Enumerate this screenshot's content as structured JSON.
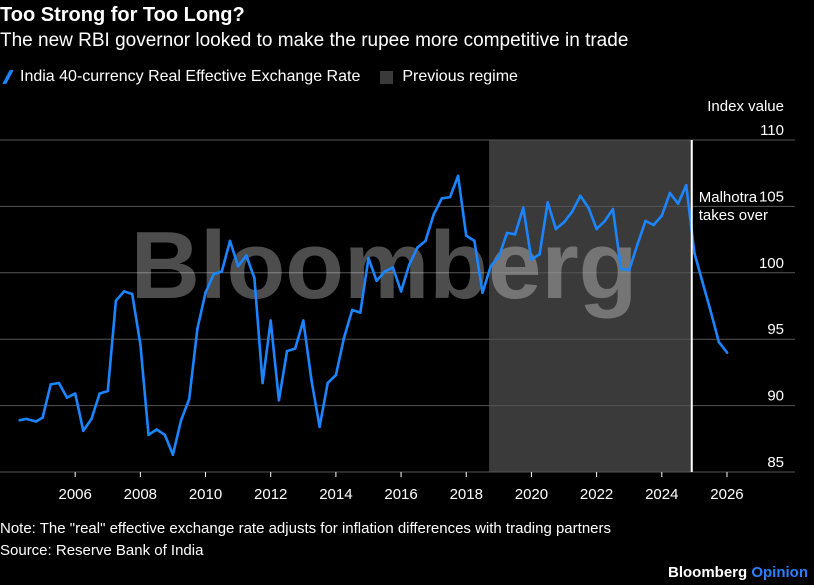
{
  "header": {
    "title": "Too Strong for Too Long?",
    "subtitle": "The new RBI governor looked to make the rupee more competitive in trade"
  },
  "legend": {
    "series_label": "India 40-currency Real Effective Exchange Rate",
    "region_label": "Previous regime"
  },
  "footer": {
    "note": "Note: The \"real\" effective exchange rate adjusts for inflation differences with trading partners",
    "source": "Source: Reserve Bank of India",
    "brand_main": "Bloomberg",
    "brand_sub": "Opinion"
  },
  "watermark": "Bloomberg",
  "colors": {
    "line": "#1a85ff",
    "region": "#3a3a3a",
    "grid": "#555555",
    "background": "#000000"
  },
  "chart_data": {
    "type": "line",
    "title": "Too Strong for Too Long?",
    "ylabel": "Index value",
    "ylim": [
      85,
      110
    ],
    "xlim": [
      2004.0,
      2026.4
    ],
    "y_ticks": [
      85,
      90,
      95,
      100,
      105,
      110
    ],
    "x_ticks": [
      2006,
      2008,
      2010,
      2012,
      2014,
      2016,
      2018,
      2020,
      2022,
      2024,
      2026
    ],
    "grid": "horizontal",
    "legend_position": "top-left",
    "shaded_region": {
      "label": "Previous regime",
      "x_start": 2018.7,
      "x_end": 2024.9
    },
    "annotation": {
      "text_line1": "Malhotra",
      "text_line2": "takes over",
      "x": 2024.92
    },
    "series": [
      {
        "name": "India 40-currency Real Effective Exchange Rate",
        "x": [
          2004.3,
          2004.5,
          2004.8,
          2005.0,
          2005.25,
          2005.5,
          2005.75,
          2006.0,
          2006.25,
          2006.5,
          2006.75,
          2007.0,
          2007.25,
          2007.5,
          2007.75,
          2008.0,
          2008.25,
          2008.5,
          2008.75,
          2009.0,
          2009.25,
          2009.5,
          2009.75,
          2010.0,
          2010.25,
          2010.5,
          2010.75,
          2011.0,
          2011.25,
          2011.5,
          2011.75,
          2012.0,
          2012.25,
          2012.5,
          2012.75,
          2013.0,
          2013.25,
          2013.5,
          2013.75,
          2014.0,
          2014.25,
          2014.5,
          2014.75,
          2015.0,
          2015.25,
          2015.5,
          2015.75,
          2016.0,
          2016.25,
          2016.5,
          2016.75,
          2017.0,
          2017.25,
          2017.5,
          2017.75,
          2018.0,
          2018.25,
          2018.5,
          2018.75,
          2019.0,
          2019.25,
          2019.5,
          2019.75,
          2020.0,
          2020.25,
          2020.5,
          2020.75,
          2021.0,
          2021.25,
          2021.5,
          2021.75,
          2022.0,
          2022.25,
          2022.5,
          2022.75,
          2023.0,
          2023.25,
          2023.5,
          2023.75,
          2024.0,
          2024.25,
          2024.5,
          2024.75,
          2025.0,
          2025.25,
          2025.5,
          2025.75,
          2026.0
        ],
        "values": [
          88.9,
          89.0,
          88.8,
          89.1,
          91.6,
          91.7,
          90.6,
          90.9,
          88.1,
          89.0,
          90.9,
          91.1,
          97.9,
          98.6,
          98.4,
          94.6,
          87.8,
          88.2,
          87.8,
          86.3,
          88.9,
          90.5,
          95.8,
          98.5,
          99.9,
          100.1,
          102.4,
          100.5,
          101.3,
          99.6,
          91.7,
          96.4,
          90.4,
          94.1,
          94.3,
          96.4,
          91.9,
          88.4,
          91.7,
          92.3,
          95.1,
          97.2,
          97.0,
          101.1,
          99.4,
          100.1,
          100.4,
          98.6,
          100.6,
          101.9,
          102.4,
          104.4,
          105.6,
          105.7,
          107.3,
          102.8,
          102.4,
          98.5,
          100.5,
          101.2,
          103.0,
          102.9,
          104.9,
          101.0,
          101.4,
          105.3,
          103.3,
          103.8,
          104.6,
          105.8,
          104.9,
          103.3,
          103.9,
          104.8,
          100.3,
          100.2,
          102.1,
          103.9,
          103.6,
          104.3,
          106.0,
          105.2,
          106.6,
          101.5,
          99.3,
          97.1,
          94.8,
          94.0
        ]
      }
    ]
  }
}
